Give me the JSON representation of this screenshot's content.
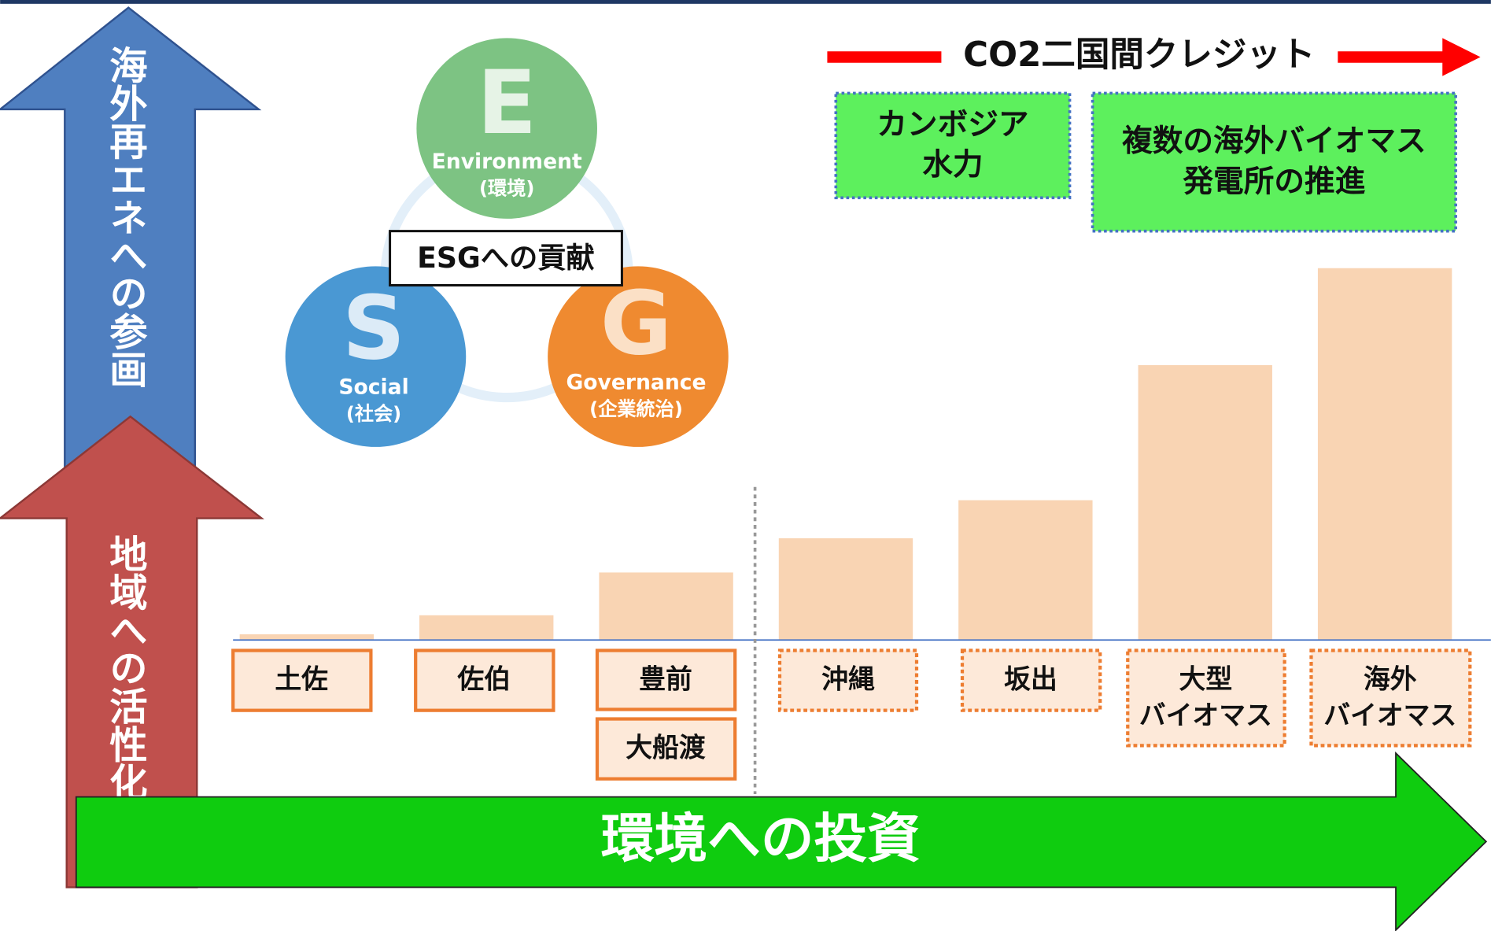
{
  "left_arrows": {
    "top": "海外再エネへの参画",
    "bottom": "地域への活性化"
  },
  "bottom_arrow": "環境への投資",
  "credit_banner": "CO2二国間クレジット",
  "projects": [
    [
      "カンボジア",
      "水力"
    ],
    [
      "複数の海外バイオマス",
      "発電所の推進"
    ]
  ],
  "esg": {
    "title": "ESGへの貢献",
    "items": [
      {
        "letter": "E",
        "name": "Environment",
        "sub": "(環境)"
      },
      {
        "letter": "S",
        "name": "Social",
        "sub": "(社会)"
      },
      {
        "letter": "G",
        "name": "Governance",
        "sub": "(企業統治)"
      }
    ]
  },
  "sites": [
    [
      "土佐"
    ],
    [
      "佐伯"
    ],
    [
      "豊前"
    ],
    [
      "沖縄"
    ],
    [
      "坂出"
    ],
    [
      "大型",
      "バイオマス"
    ],
    [
      "海外",
      "バイオマス"
    ]
  ],
  "extra_site": "大船渡"
}
